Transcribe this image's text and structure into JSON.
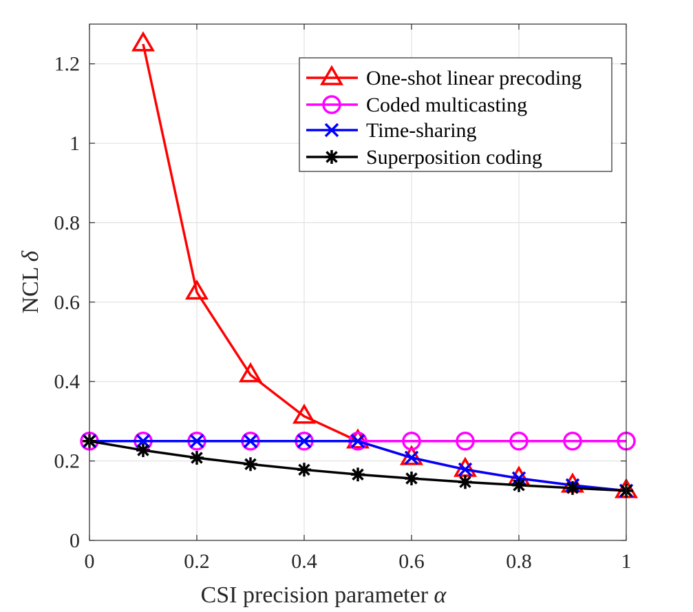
{
  "chart_data": {
    "type": "line",
    "title": "",
    "xlabel": "CSI precision parameter",
    "xlabel_symbol": "α",
    "ylabel": "NCL",
    "ylabel_symbol": "δ",
    "xlim": [
      0,
      1
    ],
    "ylim": [
      0,
      1.3
    ],
    "xticks": [
      0,
      0.2,
      0.4,
      0.6,
      0.8,
      1
    ],
    "xtick_labels": [
      "0",
      "0.2",
      "0.4",
      "0.6",
      "0.8",
      "1"
    ],
    "yticks": [
      0,
      0.2,
      0.4,
      0.6,
      0.8,
      1,
      1.2
    ],
    "ytick_labels": [
      "0",
      "0.2",
      "0.4",
      "0.6",
      "0.8",
      "1",
      "1.2"
    ],
    "grid": true,
    "legend_position": "top-right",
    "x": [
      0,
      0.1,
      0.2,
      0.3,
      0.4,
      0.5,
      0.6,
      0.7,
      0.8,
      0.9,
      1
    ],
    "series": [
      {
        "name": "One-shot linear precoding",
        "color": "#ff0000",
        "marker": "triangle",
        "x": [
          0.1,
          0.2,
          0.3,
          0.4,
          0.5,
          0.6,
          0.7,
          0.8,
          0.9,
          1
        ],
        "values": [
          1.25,
          0.625,
          0.4167,
          0.3125,
          0.25,
          0.2083,
          0.1786,
          0.1563,
          0.1389,
          0.125
        ]
      },
      {
        "name": "Coded multicasting",
        "color": "#ff00ff",
        "marker": "circle",
        "x": [
          0,
          0.1,
          0.2,
          0.3,
          0.4,
          0.5,
          0.6,
          0.7,
          0.8,
          0.9,
          1
        ],
        "values": [
          0.25,
          0.25,
          0.25,
          0.25,
          0.25,
          0.25,
          0.25,
          0.25,
          0.25,
          0.25,
          0.25
        ]
      },
      {
        "name": "Time-sharing",
        "color": "#0000ff",
        "marker": "x",
        "x": [
          0,
          0.1,
          0.2,
          0.3,
          0.4,
          0.5,
          0.6,
          0.7,
          0.8,
          0.9,
          1
        ],
        "values": [
          0.25,
          0.25,
          0.25,
          0.25,
          0.25,
          0.25,
          0.2083,
          0.1786,
          0.1563,
          0.1389,
          0.125
        ]
      },
      {
        "name": "Superposition coding",
        "color": "#000000",
        "marker": "asterisk",
        "x": [
          0,
          0.1,
          0.2,
          0.3,
          0.4,
          0.5,
          0.6,
          0.7,
          0.8,
          0.9,
          1
        ],
        "values": [
          0.25,
          0.227,
          0.208,
          0.192,
          0.178,
          0.166,
          0.156,
          0.147,
          0.139,
          0.132,
          0.125
        ]
      }
    ]
  }
}
